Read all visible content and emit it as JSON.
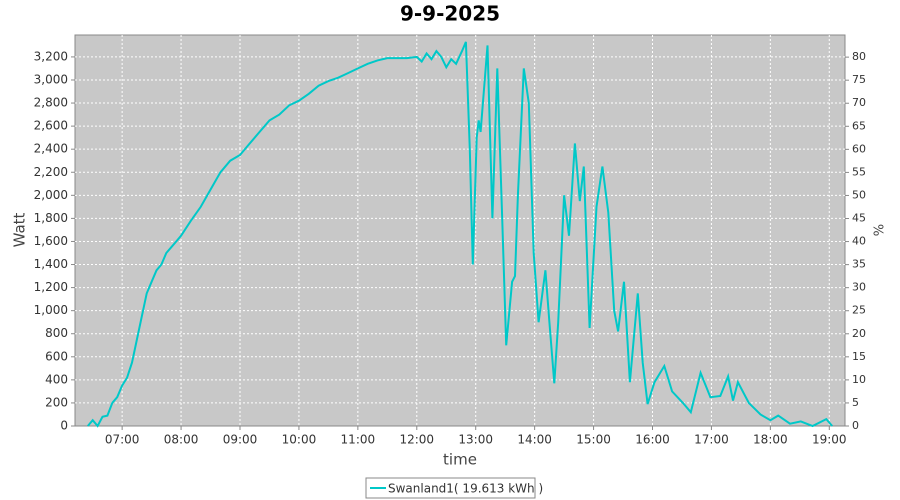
{
  "chart_data": {
    "type": "line",
    "title": "9-9-2025",
    "xlabel": "time",
    "ylabel": "Watt",
    "y2label": "%",
    "x": [
      "06:25",
      "06:30",
      "06:35",
      "06:40",
      "06:45",
      "06:50",
      "06:55",
      "07:00",
      "07:05",
      "07:10",
      "07:15",
      "07:20",
      "07:25",
      "07:30",
      "07:35",
      "07:40",
      "07:45",
      "07:50",
      "07:55",
      "08:00",
      "08:10",
      "08:20",
      "08:30",
      "08:40",
      "08:50",
      "09:00",
      "09:10",
      "09:20",
      "09:30",
      "09:40",
      "09:50",
      "10:00",
      "10:10",
      "10:20",
      "10:30",
      "10:40",
      "10:50",
      "11:00",
      "11:10",
      "11:20",
      "11:30",
      "11:40",
      "11:50",
      "12:00",
      "12:05",
      "12:10",
      "12:15",
      "12:20",
      "12:25",
      "12:30",
      "12:35",
      "12:40",
      "12:46",
      "12:50",
      "12:54",
      "12:57",
      "13:01",
      "13:03",
      "13:05",
      "13:12",
      "13:17",
      "13:22",
      "13:27",
      "13:31",
      "13:37",
      "13:40",
      "13:43",
      "13:49",
      "13:54",
      "13:59",
      "14:04",
      "14:11",
      "14:15",
      "14:20",
      "14:24",
      "14:30",
      "14:35",
      "14:41",
      "14:46",
      "14:50",
      "14:56",
      "15:03",
      "15:09",
      "15:15",
      "15:21",
      "15:25",
      "15:31",
      "15:37",
      "15:45",
      "15:50",
      "15:55",
      "16:02",
      "16:12",
      "16:20",
      "16:31",
      "16:39",
      "16:49",
      "16:59",
      "17:09",
      "17:17",
      "17:22",
      "17:27",
      "17:38",
      "17:50",
      "18:00",
      "18:08",
      "18:20",
      "18:31",
      "18:43",
      "18:57",
      "19:03"
    ],
    "series": [
      {
        "name": "Swanland1( 19.613 kWh )",
        "color": "#00c8c8",
        "values": [
          0,
          50,
          0,
          80,
          90,
          200,
          250,
          350,
          420,
          550,
          750,
          950,
          1150,
          1250,
          1350,
          1400,
          1500,
          1550,
          1600,
          1650,
          1780,
          1900,
          2050,
          2200,
          2300,
          2350,
          2450,
          2550,
          2650,
          2700,
          2780,
          2820,
          2880,
          2950,
          2990,
          3020,
          3060,
          3100,
          3140,
          3170,
          3190,
          3190,
          3190,
          3200,
          3160,
          3230,
          3180,
          3250,
          3200,
          3110,
          3180,
          3140,
          3250,
          3330,
          2400,
          1400,
          2500,
          2650,
          2550,
          3300,
          1800,
          3100,
          1800,
          700,
          1250,
          1300,
          2000,
          3100,
          2800,
          1500,
          900,
          1350,
          900,
          370,
          900,
          2000,
          1650,
          2450,
          1950,
          2250,
          850,
          1900,
          2250,
          1850,
          1000,
          820,
          1250,
          380,
          1150,
          550,
          190,
          380,
          520,
          300,
          200,
          120,
          460,
          250,
          260,
          430,
          220,
          380,
          200,
          100,
          50,
          90,
          20,
          40,
          0,
          60,
          0
        ]
      }
    ],
    "xlim": [
      "06:12",
      "19:16"
    ],
    "xticks": [
      "07:00",
      "08:00",
      "09:00",
      "10:00",
      "11:00",
      "12:00",
      "13:00",
      "14:00",
      "15:00",
      "16:00",
      "17:00",
      "18:00",
      "19:00"
    ],
    "ylim": [
      0,
      3390
    ],
    "yticks": [
      0,
      200,
      400,
      600,
      800,
      {
        "value": 1000,
        "label": "1,000"
      },
      {
        "value": 1200,
        "label": "1,200"
      },
      {
        "value": 1400,
        "label": "1,400"
      },
      {
        "value": 1600,
        "label": "1,600"
      },
      {
        "value": 1800,
        "label": "1,800"
      },
      {
        "value": 2000,
        "label": "2,000"
      },
      {
        "value": 2200,
        "label": "2,200"
      },
      {
        "value": 2400,
        "label": "2,400"
      },
      {
        "value": 2600,
        "label": "2,600"
      },
      {
        "value": 2800,
        "label": "2,800"
      },
      {
        "value": 3000,
        "label": "3,000"
      },
      {
        "value": 3200,
        "label": "3,200"
      }
    ],
    "y2lim": [
      0,
      84.8
    ],
    "y2ticks": [
      0,
      5,
      10,
      15,
      20,
      25,
      30,
      35,
      40,
      45,
      50,
      55,
      60,
      65,
      70,
      75,
      80
    ],
    "grid": true,
    "legend": "bottom"
  }
}
